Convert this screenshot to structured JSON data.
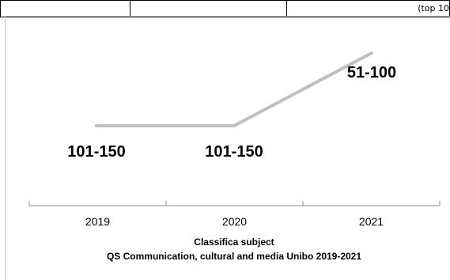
{
  "top_table": {
    "cells": [
      "",
      "",
      "(top 10"
    ]
  },
  "chart_data": {
    "type": "line",
    "categories": [
      "2019",
      "2020",
      "2021"
    ],
    "series": [
      {
        "values": [
          125.5,
          125.5,
          75.5
        ],
        "labels": [
          "101-150",
          "101-150",
          "51-100"
        ],
        "color": "#bfbfbf"
      }
    ],
    "title": "Classifica subject",
    "subtitle": "QS Communication, cultural and media Unibo 2019-2021",
    "xlabel": "",
    "ylabel": "",
    "y_reversed": true,
    "grid": false
  }
}
